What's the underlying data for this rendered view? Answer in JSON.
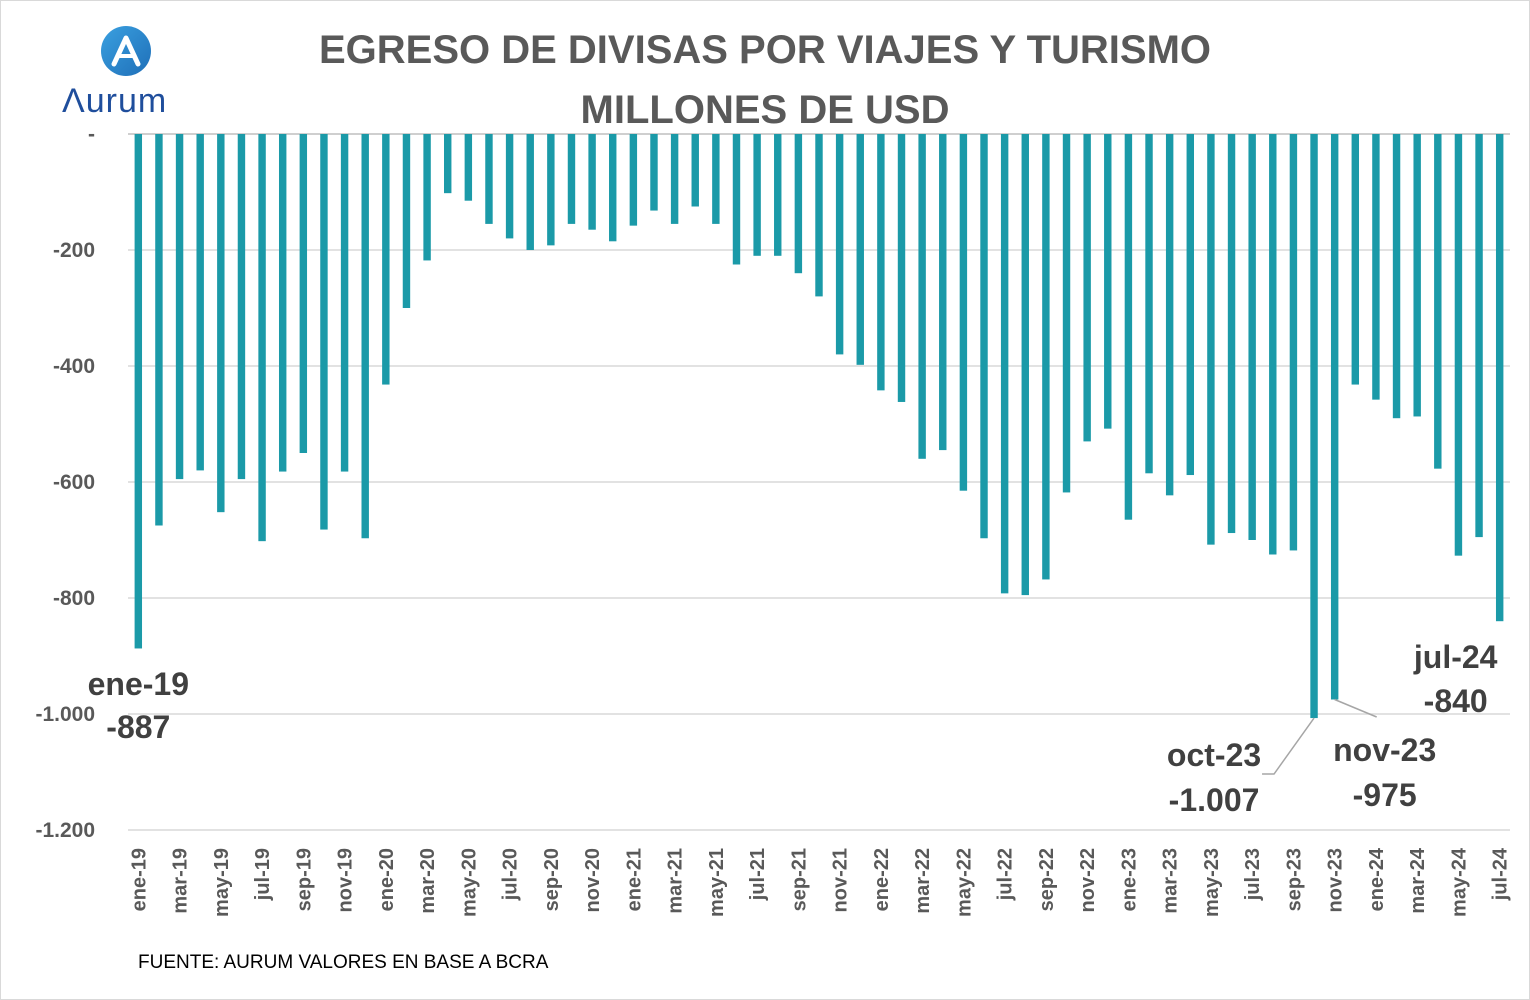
{
  "logo": {
    "text": "urum",
    "icon": "aurum-logo-icon",
    "colors": {
      "circle": "#2f8fd0",
      "text": "#1f4e9c"
    }
  },
  "chart_data": {
    "type": "bar",
    "title": "EGRESO DE DIVISAS POR VIAJES Y TURISMO",
    "subtitle": "MILLONES DE USD",
    "xlabel": "",
    "ylabel": "",
    "ylim": [
      -1200,
      0
    ],
    "yticks": [
      0,
      -200,
      -400,
      -600,
      -800,
      -1000,
      -1200
    ],
    "ytick_labels": [
      "-",
      "-200",
      "-400",
      "-600",
      "-800",
      "-1.000",
      "-1.200"
    ],
    "grid": true,
    "bar_color": "#1b9aa8",
    "categories": [
      "ene-19",
      "feb-19",
      "mar-19",
      "abr-19",
      "may-19",
      "jun-19",
      "jul-19",
      "ago-19",
      "sep-19",
      "oct-19",
      "nov-19",
      "dic-19",
      "ene-20",
      "feb-20",
      "mar-20",
      "abr-20",
      "may-20",
      "jun-20",
      "jul-20",
      "ago-20",
      "sep-20",
      "oct-20",
      "nov-20",
      "dic-20",
      "ene-21",
      "feb-21",
      "mar-21",
      "abr-21",
      "may-21",
      "jun-21",
      "jul-21",
      "ago-21",
      "sep-21",
      "oct-21",
      "nov-21",
      "dic-21",
      "ene-22",
      "feb-22",
      "mar-22",
      "abr-22",
      "may-22",
      "jun-22",
      "jul-22",
      "ago-22",
      "sep-22",
      "oct-22",
      "nov-22",
      "dic-22",
      "ene-23",
      "feb-23",
      "mar-23",
      "abr-23",
      "may-23",
      "jun-23",
      "jul-23",
      "ago-23",
      "sep-23",
      "oct-23",
      "nov-23",
      "dic-23",
      "ene-24",
      "feb-24",
      "mar-24",
      "abr-24",
      "may-24",
      "jun-24",
      "jul-24"
    ],
    "tick_labels": [
      "ene-19",
      "mar-19",
      "may-19",
      "jul-19",
      "sep-19",
      "nov-19",
      "ene-20",
      "mar-20",
      "may-20",
      "jul-20",
      "sep-20",
      "nov-20",
      "ene-21",
      "mar-21",
      "may-21",
      "jul-21",
      "sep-21",
      "nov-21",
      "ene-22",
      "mar-22",
      "may-22",
      "jul-22",
      "sep-22",
      "nov-22",
      "ene-23",
      "mar-23",
      "may-23",
      "jul-23",
      "sep-23",
      "nov-23",
      "ene-24",
      "mar-24",
      "may-24",
      "jul-24"
    ],
    "values": [
      -887,
      -675,
      -595,
      -580,
      -652,
      -595,
      -702,
      -582,
      -550,
      -682,
      -582,
      -697,
      -432,
      -300,
      -218,
      -102,
      -115,
      -155,
      -180,
      -200,
      -192,
      -155,
      -165,
      -185,
      -158,
      -132,
      -155,
      -125,
      -155,
      -225,
      -210,
      -210,
      -240,
      -280,
      -380,
      -398,
      -442,
      -462,
      -560,
      -545,
      -615,
      -697,
      -792,
      -795,
      -768,
      -618,
      -530,
      -508,
      -665,
      -585,
      -623,
      -588,
      -708,
      -688,
      -700,
      -725,
      -718,
      -1007,
      -975,
      -432,
      -458,
      -490,
      -487,
      -577,
      -727,
      -695,
      -840
    ],
    "annotations": [
      {
        "label": "ene-19",
        "value": "-887"
      },
      {
        "label": "oct-23",
        "value": "-1.007"
      },
      {
        "label": "nov-23",
        "value": "-975"
      },
      {
        "label": "jul-24",
        "value": "-840"
      }
    ]
  },
  "source": "FUENTE: AURUM VALORES EN BASE A BCRA"
}
